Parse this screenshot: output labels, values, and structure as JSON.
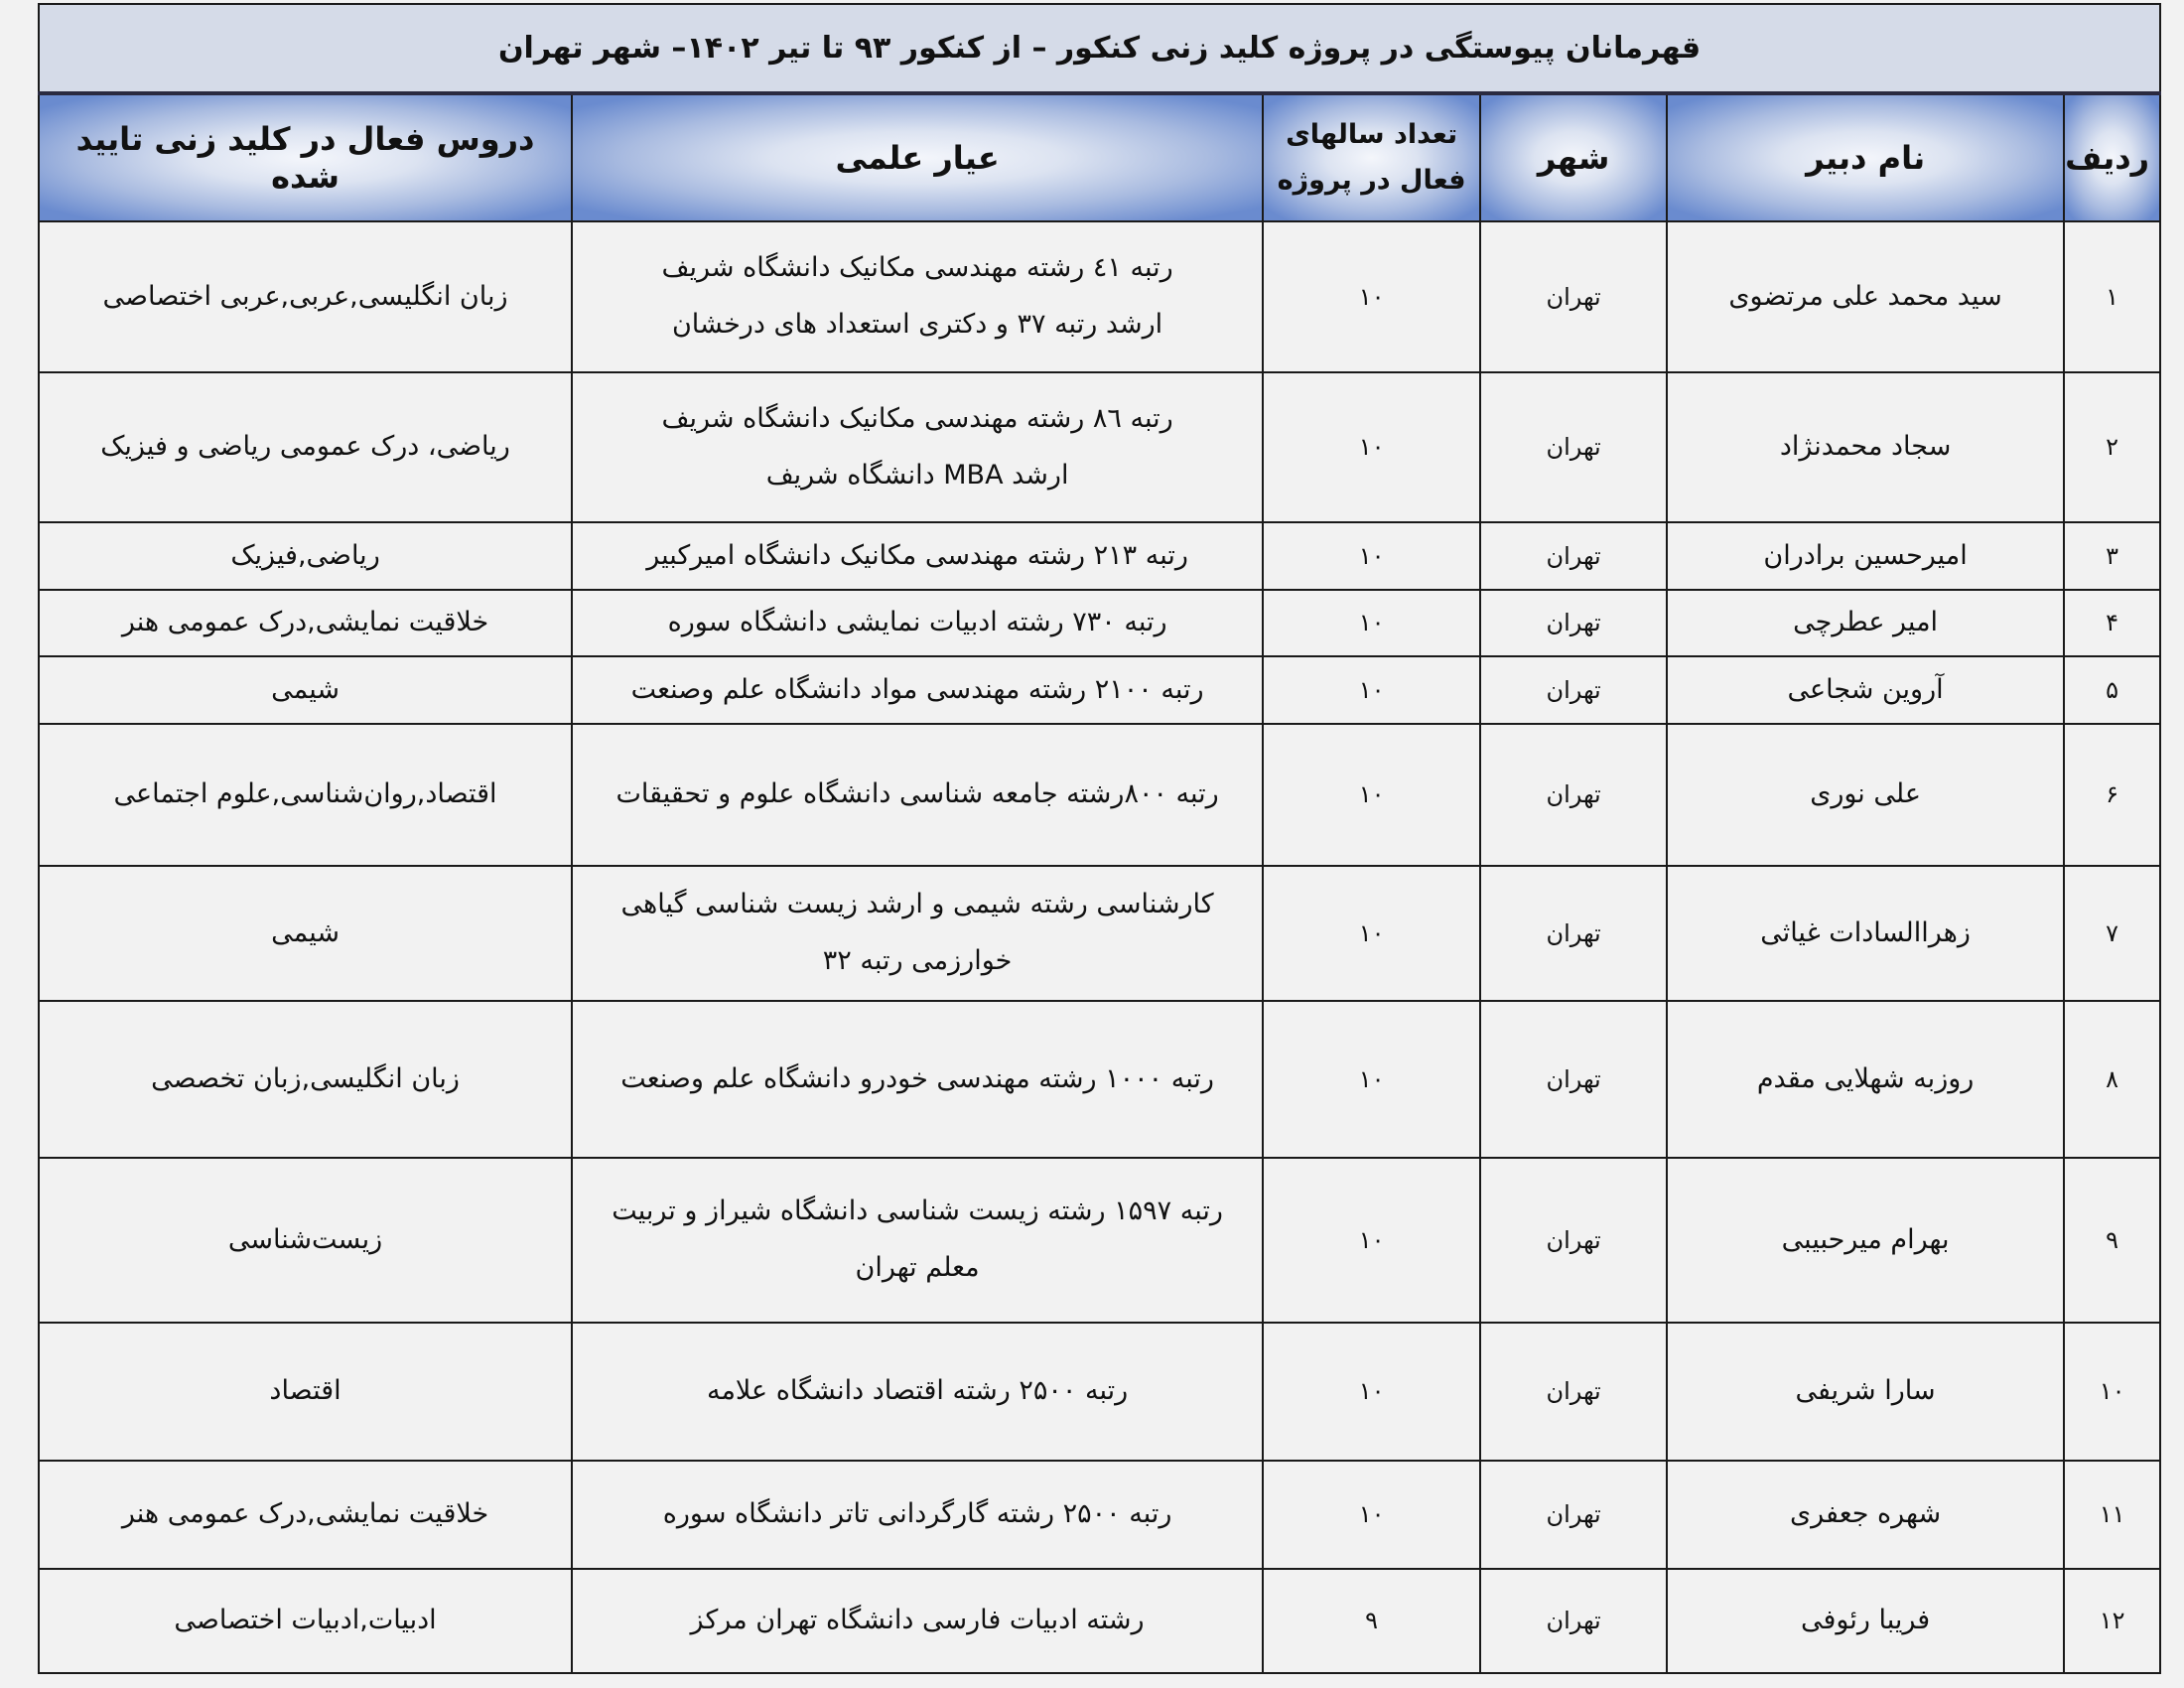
{
  "title": "قهرمانان پیوستگی در پروژه کلید زنی کنکور – از کنکور ۹۳ تا تیر ۱۴۰۲– شهر تهران",
  "headers": {
    "row": "ردیف",
    "name": "نام دبیر",
    "city": "شهر",
    "years_line1": "تعداد سالهای",
    "years_line2": "فعال در پروژه",
    "merit": "عیار علمی",
    "courses": "دروس فعال در کلید زنی تایید شده"
  },
  "colors": {
    "header_blue": "#6a8bcf",
    "title_bg": "#d5dbe8"
  },
  "rows": [
    {
      "n": "۱",
      "name": "سید محمد علی مرتضوی",
      "city": "تهران",
      "years": "۱۰",
      "merit1": "رتبه ٤١ رشته مهندسی مکانیک دانشگاه شریف",
      "merit2": "ارشد رتبه ۳۷ و دکتری استعداد های درخشان",
      "courses": "زبان انگلیسی,عربی,عربی اختصاصی"
    },
    {
      "n": "۲",
      "name": "سجاد محمدنژاد",
      "city": "تهران",
      "years": "۱۰",
      "merit1": "رتبه ٨٦ رشته مهندسی مکانیک دانشگاه شریف",
      "merit2": "ارشد MBA دانشگاه شریف",
      "courses": "ریاضی، درک عمومی ریاضی و فیزیک"
    },
    {
      "n": "۳",
      "name": "امیرحسین برادران",
      "city": "تهران",
      "years": "۱۰",
      "merit1": "رتبه ۲۱۳ رشته مهندسی مکانیک دانشگاه امیرکبیر",
      "merit2": "",
      "courses": "ریاضی,فیزیک"
    },
    {
      "n": "۴",
      "name": "امیر عطرچی",
      "city": "تهران",
      "years": "۱۰",
      "merit1": "رتبه ۷۳۰ رشته ادبیات نمایشی دانشگاه سوره",
      "merit2": "",
      "courses": "خلاقیت نمایشی,درک عمومی هنر"
    },
    {
      "n": "۵",
      "name": "آروین شجاعی",
      "city": "تهران",
      "years": "۱۰",
      "merit1": "رتبه ۲۱۰۰ رشته مهندسی مواد دانشگاه علم وصنعت",
      "merit2": "",
      "courses": "شیمی"
    },
    {
      "n": "۶",
      "name": "علی نوری",
      "city": "تهران",
      "years": "۱۰",
      "merit1": "رتبه ۸۰۰رشته جامعه شناسی دانشگاه علوم و تحقیقات",
      "merit2": "",
      "courses": "اقتصاد,روان‌شناسی,علوم اجتماعی"
    },
    {
      "n": "۷",
      "name": "زهراالسادات غیاثی",
      "city": "تهران",
      "years": "۱۰",
      "merit1": "کارشناسی رشته شیمی و ارشد زیست شناسی گیاهی",
      "merit2": "خوارزمی رتبه ۳۲",
      "courses": "شیمی"
    },
    {
      "n": "۸",
      "name": "روزبه شهلایی مقدم",
      "city": "تهران",
      "years": "۱۰",
      "merit1": "رتبه ۱۰۰۰ رشته مهندسی خودرو دانشگاه علم وصنعت",
      "merit2": "",
      "courses": "زبان انگلیسی,زبان تخصصی"
    },
    {
      "n": "۹",
      "name": "بهرام میرحبیبی",
      "city": "تهران",
      "years": "۱۰",
      "merit1": "رتبه ۱۵۹۷ رشته زیست شناسی دانشگاه شیراز  و تربیت",
      "merit2": "معلم تهران",
      "courses": "زیست‌شناسی"
    },
    {
      "n": "۱۰",
      "name": "سارا شریفی",
      "city": "تهران",
      "years": "۱۰",
      "merit1": "رتبه ۲۵۰۰ رشته اقتصاد دانشگاه علامه",
      "merit2": "",
      "courses": "اقتصاد"
    },
    {
      "n": "۱۱",
      "name": "شهره جعفری",
      "city": "تهران",
      "years": "۱۰",
      "merit1": "رتبه ۲۵۰۰ رشته گارگردانی  تاتر دانشگاه سوره",
      "merit2": "",
      "courses": "خلاقیت نمایشی,درک عمومی هنر"
    },
    {
      "n": "۱۲",
      "name": "فریبا رئوفی",
      "city": "تهران",
      "years": "۹",
      "merit1": "رشته ادبیات  فارسی دانشگاه تهران  مرکز",
      "merit2": "",
      "courses": "ادبیات,ادبیات اختصاصی"
    }
  ]
}
